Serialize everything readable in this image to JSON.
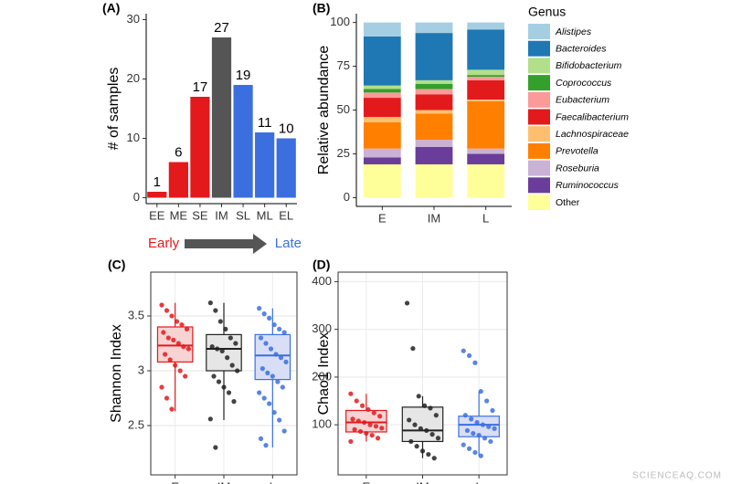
{
  "chart_data": [
    {
      "type": "bar",
      "title": "(A)",
      "y_label": "# of samples",
      "categories": [
        "EE",
        "ME",
        "SE",
        "IM",
        "SL",
        "ML",
        "EL"
      ],
      "values": [
        1,
        6,
        17,
        27,
        19,
        11,
        10
      ],
      "colors": [
        "#e3191c",
        "#e3191c",
        "#e3191c",
        "#555555",
        "#3b6fe0",
        "#3b6fe0",
        "#3b6fe0"
      ],
      "ylim": [
        -1,
        31
      ],
      "yticks": [
        0,
        10,
        20,
        30
      ],
      "grid": false,
      "annotations": [
        {
          "text": "Early",
          "color": "#e3191c"
        },
        {
          "text": "Late",
          "color": "#3b6fe0"
        }
      ]
    },
    {
      "type": "stacked_bar",
      "title": "(B)",
      "y_label": "Relative abundance",
      "legend_title": "Genus",
      "categories": [
        "E",
        "IM",
        "L"
      ],
      "ylim": [
        -5,
        105
      ],
      "yticks": [
        0,
        25,
        50,
        75,
        100
      ],
      "grid": false,
      "series": [
        {
          "name": "Other",
          "color": "#ffff99",
          "values": [
            19,
            19,
            19
          ]
        },
        {
          "name": "Ruminococcus",
          "color": "#6a3d9a",
          "values": [
            4,
            10,
            6
          ]
        },
        {
          "name": "Roseburia",
          "color": "#cab2d6",
          "values": [
            5,
            4,
            3
          ]
        },
        {
          "name": "Prevotella",
          "color": "#ff7f00",
          "values": [
            15,
            15,
            27
          ]
        },
        {
          "name": "Lachnospiraceae",
          "color": "#fdbf6f",
          "values": [
            3,
            2,
            1
          ]
        },
        {
          "name": "Faecalibacterium",
          "color": "#e31a1c",
          "values": [
            11,
            9,
            11
          ]
        },
        {
          "name": "Eubacterium",
          "color": "#fb9a99",
          "values": [
            3,
            3,
            2
          ]
        },
        {
          "name": "Coprococcus",
          "color": "#33a02c",
          "values": [
            2,
            3,
            1
          ]
        },
        {
          "name": "Bifidobacterium",
          "color": "#b2df8a",
          "values": [
            2,
            2,
            3
          ]
        },
        {
          "name": "Bacteroides",
          "color": "#1f78b4",
          "values": [
            28,
            27,
            23
          ]
        },
        {
          "name": "Alistipes",
          "color": "#a6cee3",
          "values": [
            8,
            6,
            4
          ]
        }
      ]
    },
    {
      "type": "box",
      "title": "(C)",
      "y_label": "Shannon Index",
      "categories": [
        "E",
        "IM",
        "L"
      ],
      "ylim": [
        2.05,
        3.9
      ],
      "yticks": [
        2.5,
        3.0,
        3.5
      ],
      "grid": true,
      "series": [
        {
          "color": "#e3191c",
          "fill": "#f7d3d3",
          "whisker_low": 2.63,
          "q1": 3.08,
          "median": 3.23,
          "q3": 3.4,
          "whisker_high": 3.62,
          "points": [
            3.6,
            3.55,
            3.5,
            3.45,
            3.42,
            3.38,
            3.35,
            3.3,
            3.28,
            3.25,
            3.22,
            3.2,
            3.15,
            3.1,
            3.05,
            3.0,
            2.95,
            2.85,
            2.75,
            2.65
          ]
        },
        {
          "color": "#222222",
          "fill": "#e6e6e6",
          "whisker_low": 2.55,
          "q1": 3.0,
          "median": 3.2,
          "q3": 3.33,
          "whisker_high": 3.62,
          "points": [
            3.62,
            3.55,
            3.45,
            3.38,
            3.3,
            3.25,
            3.22,
            3.2,
            3.18,
            3.12,
            3.05,
            3.0,
            2.95,
            2.9,
            2.85,
            2.8,
            2.72,
            2.56,
            2.3
          ]
        },
        {
          "color": "#3b6fe0",
          "fill": "#d7def6",
          "whisker_low": 2.3,
          "q1": 2.92,
          "median": 3.14,
          "q3": 3.33,
          "whisker_high": 3.57,
          "points": [
            3.57,
            3.52,
            3.48,
            3.42,
            3.38,
            3.35,
            3.3,
            3.25,
            3.2,
            3.15,
            3.12,
            3.08,
            3.02,
            2.98,
            2.95,
            2.9,
            2.85,
            2.8,
            2.75,
            2.7,
            2.62,
            2.55,
            2.45,
            2.38,
            2.32
          ]
        }
      ]
    },
    {
      "type": "box",
      "title": "(D)",
      "y_label": "Chao1 Index",
      "categories": [
        "E",
        "IM",
        "L"
      ],
      "ylim": [
        -5,
        420
      ],
      "yticks": [
        100,
        200,
        300,
        400
      ],
      "grid": true,
      "series": [
        {
          "color": "#e3191c",
          "fill": "#f7d3d3",
          "whisker_low": 65,
          "q1": 85,
          "median": 105,
          "q3": 130,
          "whisker_high": 165,
          "points": [
            165,
            150,
            140,
            132,
            125,
            118,
            112,
            108,
            105,
            100,
            97,
            93,
            90,
            86,
            82,
            78,
            72,
            65
          ]
        },
        {
          "color": "#222222",
          "fill": "#e6e6e6",
          "whisker_low": 30,
          "q1": 65,
          "median": 88,
          "q3": 137,
          "whisker_high": 160,
          "points": [
            355,
            260,
            160,
            140,
            135,
            120,
            110,
            100,
            92,
            88,
            80,
            72,
            65,
            55,
            45,
            38,
            30
          ]
        },
        {
          "color": "#3b6fe0",
          "fill": "#d7def6",
          "whisker_low": 35,
          "q1": 75,
          "median": 100,
          "q3": 118,
          "whisker_high": 170,
          "points": [
            255,
            245,
            230,
            170,
            150,
            130,
            120,
            112,
            105,
            100,
            96,
            92,
            88,
            82,
            78,
            72,
            65,
            58,
            50,
            42,
            35
          ]
        }
      ]
    }
  ],
  "watermark": "SCIENCEAQ.COM"
}
